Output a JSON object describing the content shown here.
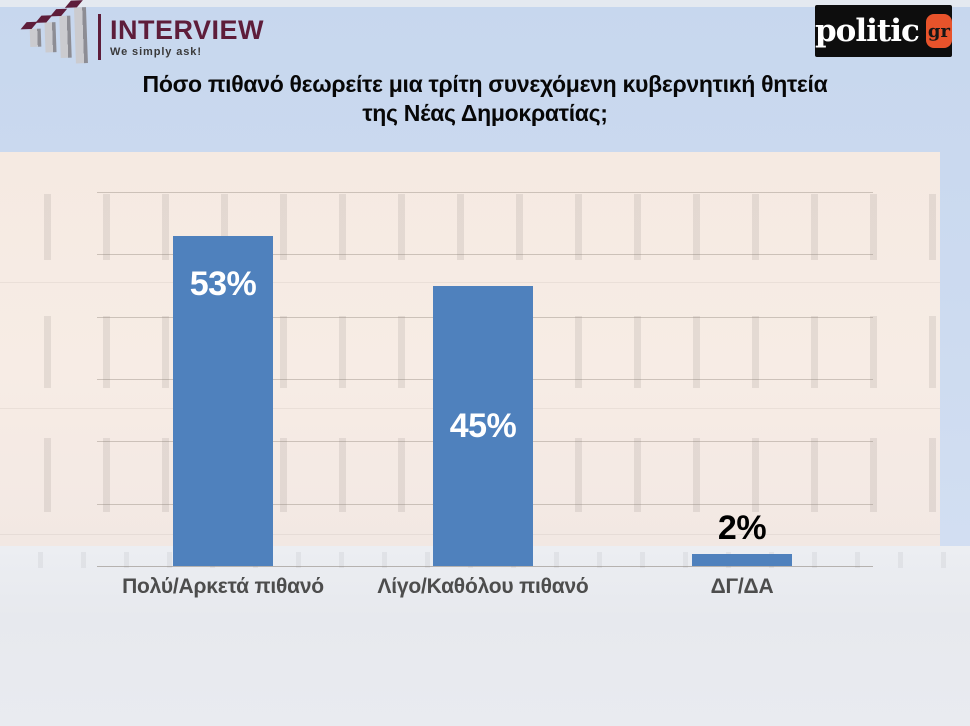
{
  "header": {
    "interview_logo": {
      "name": "INTERVIEW",
      "tagline": "We simply ask!"
    },
    "politic_logo": {
      "name": "politic",
      "suffix": "gr"
    }
  },
  "title": {
    "line1": "Πόσο πιθανό θεωρείτε μια τρίτη συνεχόμενη κυβερνητική θητεία",
    "line2": "της Νέας Δημοκρατίας;"
  },
  "chart_data": {
    "type": "bar",
    "title": "Πόσο πιθανό θεωρείτε μια τρίτη συνεχόμενη κυβερνητική θητεία της Νέας Δημοκρατίας;",
    "categories": [
      "Πολύ/Αρκετά πιθανό",
      "Λίγο/Καθόλου πιθανό",
      "ΔΓ/ΔΑ"
    ],
    "values": [
      53,
      45,
      2
    ],
    "data_labels": [
      "53%",
      "45%",
      "2%"
    ],
    "xlabel": "",
    "ylabel": "",
    "ylim": [
      0,
      60
    ],
    "gridline_interval": 10,
    "grid": true,
    "legend": "none",
    "bar_color": "#4f81bd",
    "label_positions": [
      "inside-top",
      "inside-middle",
      "outside-top"
    ],
    "inside_label_color": "#ffffff",
    "outside_label_color": "#000000",
    "category_label_color": "#4d4d4d"
  },
  "colors": {
    "brand_maroon": "#5e1d3a",
    "politic_orange": "#e8532b",
    "politic_black": "#0d0d0d",
    "sky_blue": "#cddbf0"
  }
}
